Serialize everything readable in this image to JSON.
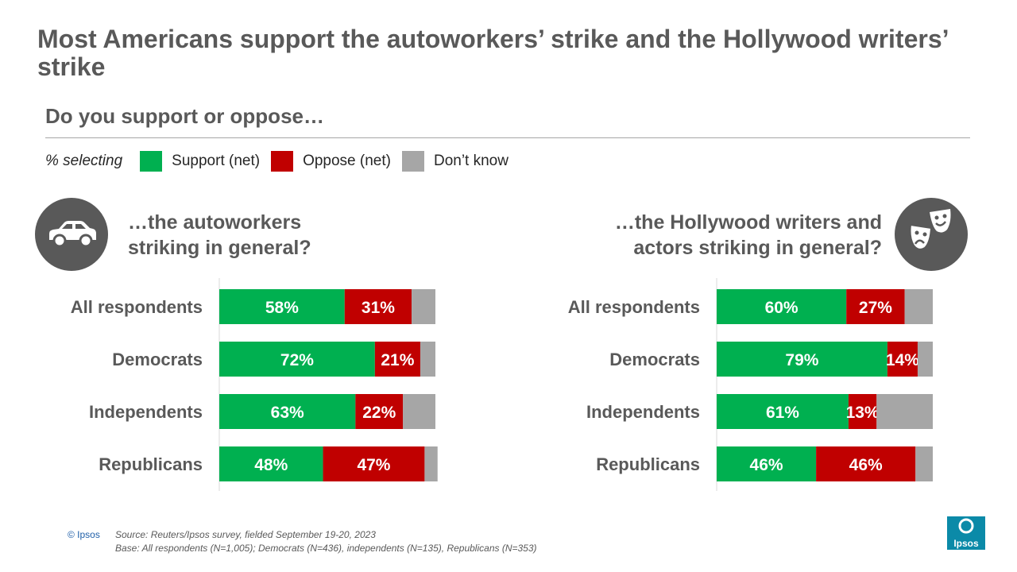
{
  "title": "Most Americans support the autoworkers’ strike and the Hollywood writers’ strike",
  "subtitle": "Do you support or oppose…",
  "legend": {
    "intro": "% selecting",
    "items": [
      {
        "label": "Support (net)",
        "color": "#00b050"
      },
      {
        "label": "Oppose (net)",
        "color": "#c00000"
      },
      {
        "label": "Don’t know",
        "color": "#a6a6a6"
      }
    ]
  },
  "questions": {
    "left": {
      "line1": "…the autoworkers",
      "line2": "striking in general?",
      "icon": "car-icon"
    },
    "right": {
      "line1": "…the Hollywood writers and",
      "line2": "actors striking in general?",
      "icon": "theater-masks-icon"
    }
  },
  "chart_data": [
    {
      "type": "bar",
      "orientation": "horizontal",
      "stacked": true,
      "title": "…the autoworkers striking in general?",
      "categories": [
        "All respondents",
        "Democrats",
        "Independents",
        "Republicans"
      ],
      "series": [
        {
          "name": "Support (net)",
          "values": [
            58,
            72,
            63,
            48
          ],
          "labels": [
            "58%",
            "72%",
            "63%",
            "48%"
          ]
        },
        {
          "name": "Oppose (net)",
          "values": [
            31,
            21,
            22,
            47
          ],
          "labels": [
            "31%",
            "21%",
            "22%",
            "47%"
          ]
        },
        {
          "name": "Don’t know",
          "values": [
            11,
            7,
            15,
            6
          ]
        }
      ],
      "xlim": [
        0,
        100
      ]
    },
    {
      "type": "bar",
      "orientation": "horizontal",
      "stacked": true,
      "title": "…the Hollywood writers and actors striking in general?",
      "categories": [
        "All respondents",
        "Democrats",
        "Independents",
        "Republicans"
      ],
      "series": [
        {
          "name": "Support (net)",
          "values": [
            60,
            79,
            61,
            46
          ],
          "labels": [
            "60%",
            "79%",
            "61%",
            "46%"
          ]
        },
        {
          "name": "Oppose (net)",
          "values": [
            27,
            14,
            13,
            46
          ],
          "labels": [
            "27%",
            "14%",
            "13%",
            "46%"
          ]
        },
        {
          "name": "Don’t know",
          "values": [
            13,
            7,
            26,
            8
          ]
        }
      ],
      "xlim": [
        0,
        100
      ]
    }
  ],
  "footer": {
    "copyright": "© Ipsos",
    "source": "Source: Reuters/Ipsos survey, fielded September 19-20, 2023",
    "base": "Base: All respondents (N=1,005); Democrats (N=436), independents (N=135), Republicans (N=353)",
    "logo": "Ipsos"
  }
}
